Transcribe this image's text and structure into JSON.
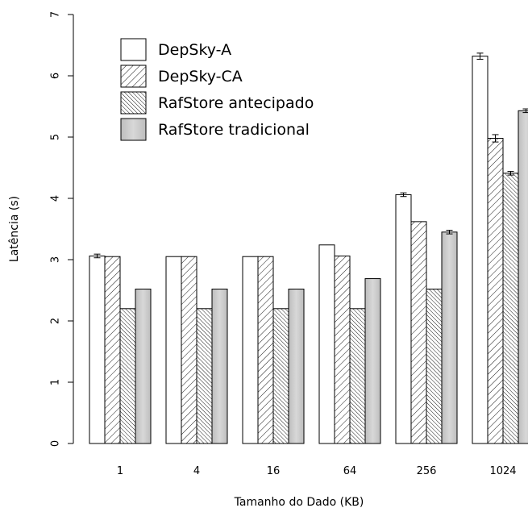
{
  "chart_data": {
    "type": "bar",
    "title": "",
    "xlabel": "Tamanho do Dado (KB)",
    "ylabel": "Latência (s)",
    "ylim": [
      0,
      7
    ],
    "yticks": [
      "0",
      "1",
      "2",
      "3",
      "4",
      "5",
      "6",
      "7"
    ],
    "categories": [
      "1",
      "4",
      "16",
      "64",
      "256",
      "1024"
    ],
    "legend_position": "top-left",
    "grid": false,
    "series": [
      {
        "name": "DepSky-A",
        "fill": "white",
        "values": [
          3.06,
          3.05,
          3.05,
          3.24,
          4.06,
          6.32
        ],
        "errors": [
          0.03,
          0.0,
          0.0,
          0.0,
          0.03,
          0.05
        ]
      },
      {
        "name": "DepSky-CA",
        "fill": "hatch-forward",
        "values": [
          3.05,
          3.05,
          3.05,
          3.06,
          3.62,
          4.98
        ],
        "errors": [
          0.0,
          0.0,
          0.0,
          0.0,
          0.0,
          0.06
        ]
      },
      {
        "name": "RafStore antecipado",
        "fill": "hatch-backward-dense",
        "values": [
          2.2,
          2.2,
          2.2,
          2.2,
          2.52,
          4.41
        ],
        "errors": [
          0.0,
          0.0,
          0.0,
          0.0,
          0.0,
          0.03
        ]
      },
      {
        "name": "RafStore tradicional",
        "fill": "gray-gradient",
        "values": [
          2.52,
          2.52,
          2.52,
          2.69,
          3.45,
          5.43
        ],
        "errors": [
          0.0,
          0.0,
          0.0,
          0.0,
          0.03,
          0.03
        ]
      }
    ]
  }
}
